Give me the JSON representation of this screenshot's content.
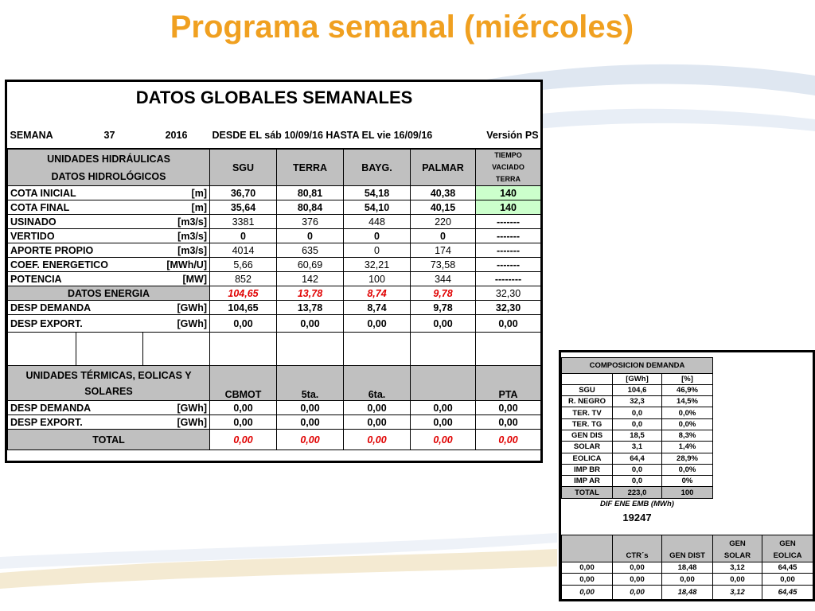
{
  "title": "Programa semanal (miércoles)",
  "main": {
    "heading": "DATOS GLOBALES SEMANALES",
    "semana_label": "SEMANA",
    "semana_num": "37",
    "year": "2016",
    "range": "DESDE EL sáb 10/09/16  HASTA EL  vie 16/09/16",
    "version": "Versión   PS",
    "hydro_header": [
      "UNIDADES HIDRÁULICAS",
      "DATOS HIDROLÓGICOS"
    ],
    "hydro_cols": [
      "SGU",
      "TERRA",
      "BAYG.",
      "PALMAR"
    ],
    "tiempo": [
      "TIEMPO",
      "VACIADO",
      "TERRA"
    ],
    "hydro_rows": [
      {
        "label": "COTA INICIAL",
        "unit": "[m]",
        "vals": [
          "36,70",
          "80,81",
          "54,18",
          "40,38"
        ],
        "last": "140"
      },
      {
        "label": "COTA FINAL",
        "unit": "[m]",
        "vals": [
          "35,64",
          "80,84",
          "54,10",
          "40,15"
        ],
        "last": "140"
      },
      {
        "label": "USINADO",
        "unit": "[m3/s]",
        "vals": [
          "3381",
          "376",
          "448",
          "220"
        ],
        "last": "-------"
      },
      {
        "label": "VERTIDO",
        "unit": "[m3/s]",
        "vals": [
          "0",
          "0",
          "0",
          "0"
        ],
        "last": "-------"
      },
      {
        "label": "APORTE PROPIO",
        "unit": "[m3/s]",
        "vals": [
          "4014",
          "635",
          "0",
          "174"
        ],
        "last": "-------"
      },
      {
        "label": "COEF. ENERGETICO",
        "unit": "[MWh/U]",
        "vals": [
          "5,66",
          "60,69",
          "32,21",
          "73,58"
        ],
        "last": "-------"
      },
      {
        "label": "POTENCIA",
        "unit": "[MW]",
        "vals": [
          "852",
          "142",
          "100",
          "344"
        ],
        "last": "--------"
      }
    ],
    "energia": {
      "label": "DATOS ENERGIA",
      "vals": [
        "104,65",
        "13,78",
        "8,74",
        "9,78"
      ],
      "last": "32,30"
    },
    "desp_rows": [
      {
        "label": "DESP DEMANDA",
        "unit": "[GWh]",
        "vals": [
          "104,65",
          "13,78",
          "8,74",
          "9,78",
          "32,30"
        ]
      },
      {
        "label": "DESP EXPORT.",
        "unit": "[GWh]",
        "vals": [
          "0,00",
          "0,00",
          "0,00",
          "0,00",
          "0,00"
        ]
      }
    ],
    "thermal_header": [
      "UNIDADES TÉRMICAS, EOLICAS Y",
      "SOLARES"
    ],
    "thermal_cols": [
      "CBMOT",
      "5ta.",
      "6ta.",
      "",
      "PTA"
    ],
    "thermal_rows": [
      {
        "label": "DESP DEMANDA",
        "unit": "[GWh]",
        "vals": [
          "0,00",
          "0,00",
          "0,00",
          "0,00",
          "0,00"
        ]
      },
      {
        "label": "DESP EXPORT.",
        "unit": "[GWh]",
        "vals": [
          "0,00",
          "0,00",
          "0,00",
          "0,00",
          "0,00"
        ]
      }
    ],
    "total": {
      "label": "TOTAL",
      "vals": [
        "0,00",
        "0,00",
        "0,00",
        "0,00",
        "0,00"
      ]
    }
  },
  "side": {
    "heading": "COMPOSICION DEMANDA",
    "units": [
      "[GWh]",
      "[%]"
    ],
    "rows": [
      {
        "label": "SGU",
        "gwh": "104,6",
        "pct": "46,9%"
      },
      {
        "label": "R. NEGRO",
        "gwh": "32,3",
        "pct": "14,5%"
      },
      {
        "label": "TER. TV",
        "gwh": "0,0",
        "pct": "0,0%"
      },
      {
        "label": "TER. TG",
        "gwh": "0,0",
        "pct": "0,0%"
      },
      {
        "label": "GEN DIS",
        "gwh": "18,5",
        "pct": "8,3%"
      },
      {
        "label": "SOLAR",
        "gwh": "3,1",
        "pct": "1,4%"
      },
      {
        "label": "EOLICA",
        "gwh": "64,4",
        "pct": "28,9%"
      },
      {
        "label": "IMP BR",
        "gwh": "0,0",
        "pct": "0,0%"
      },
      {
        "label": "IMP AR",
        "gwh": "0,0",
        "pct": "0%"
      }
    ],
    "total": {
      "label": "TOTAL",
      "gwh": "223,0",
      "pct": "100"
    },
    "dif_label": "DIF ENE EMB (MWh)",
    "dif_value": "19247",
    "bottom_cols": [
      "",
      "CTR´s",
      "GEN DIST",
      "GEN SOLAR",
      "GEN EOLICA"
    ],
    "bottom_col_lines": [
      [
        "",
        ""
      ],
      [
        "",
        "CTR´s"
      ],
      [
        "",
        "GEN DIST"
      ],
      [
        "GEN",
        "SOLAR"
      ],
      [
        "GEN",
        "EOLICA"
      ]
    ],
    "bottom_rows": [
      [
        "0,00",
        "0,00",
        "18,48",
        "3,12",
        "64,45"
      ],
      [
        "0,00",
        "0,00",
        "0,00",
        "0,00",
        "0,00"
      ]
    ],
    "bottom_total": [
      "0,00",
      "0,00",
      "18,48",
      "3,12",
      "64,45"
    ]
  },
  "colors": {
    "title": "#f0a020",
    "header_gray": "#c0c0c0",
    "green": "#ccffcc",
    "red": "#e00000"
  }
}
